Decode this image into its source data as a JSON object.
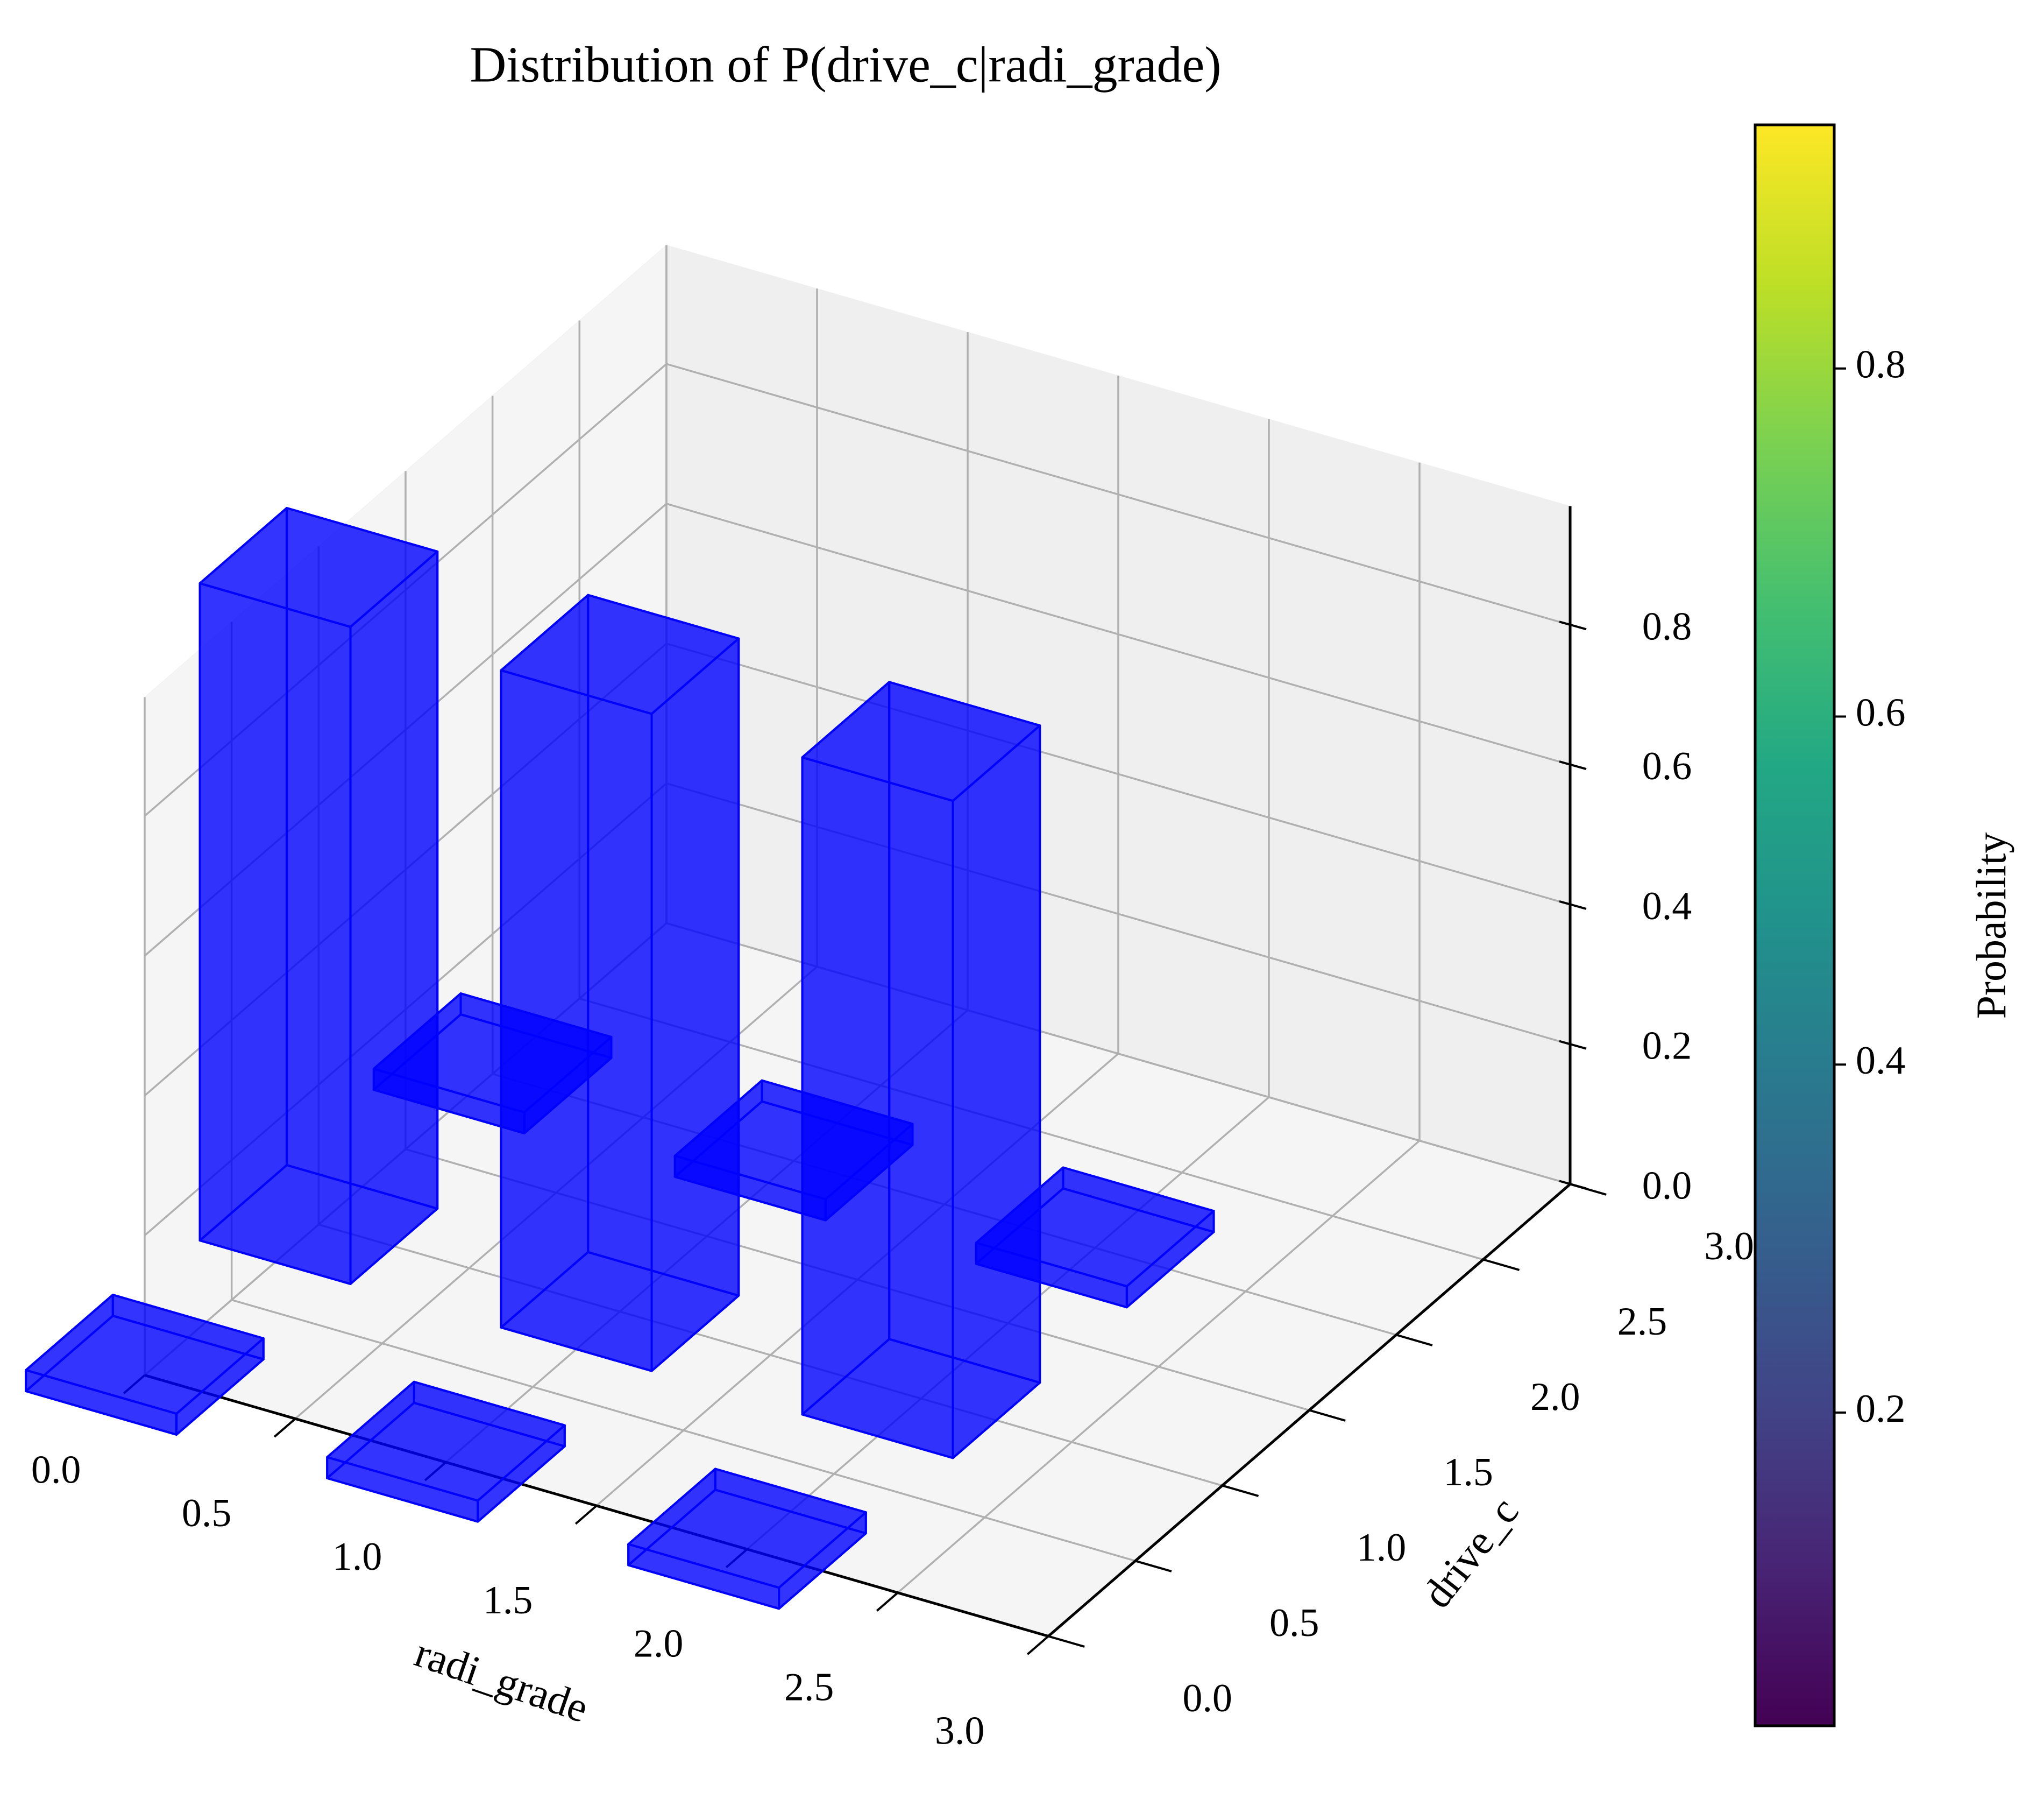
{
  "chart_data": {
    "type": "bar3d",
    "title": "Distribution of P(drive_c|radi_grade)",
    "x_label": "radi_grade",
    "y_label": "drive_c",
    "colorbar_label": "Probability",
    "x": [
      0,
      0,
      0,
      1,
      1,
      1,
      2,
      2,
      2
    ],
    "y": [
      0,
      1,
      2,
      0,
      1,
      2,
      0,
      1,
      2
    ],
    "values": [
      0.03,
      0.94,
      0.03,
      0.03,
      0.94,
      0.03,
      0.03,
      0.94,
      0.03
    ],
    "color": "#0000ff",
    "xlim": [
      0,
      3
    ],
    "ylim": [
      0,
      3
    ],
    "zlim": [
      0,
      0.97
    ],
    "xticks": [
      {
        "value": 0,
        "label": "0.0"
      },
      0.5,
      {
        "value": 1,
        "label": "1.0"
      },
      1.5,
      {
        "value": 2,
        "label": "2.0"
      },
      2.5,
      {
        "value": 3,
        "label": "3.0"
      }
    ],
    "yticks": [
      {
        "value": 0,
        "label": "0.0"
      },
      0.5,
      {
        "value": 1,
        "label": "1.0"
      },
      1.5,
      {
        "value": 2,
        "label": "2.0"
      },
      2.5,
      {
        "value": 3,
        "label": "3.0"
      }
    ],
    "zticks": [
      {
        "value": 0,
        "label": "0.0"
      },
      0.2,
      0.4,
      0.6,
      0.8
    ],
    "colormap": "viridis",
    "colorbar_lim": [
      0.02,
      0.94
    ],
    "colorbar_ticks": [
      0.2,
      0.4,
      0.6,
      0.8
    ],
    "grid": true
  }
}
